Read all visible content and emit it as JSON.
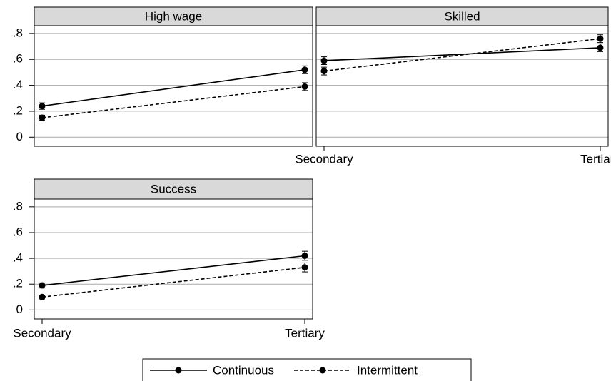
{
  "chart_data": [
    {
      "type": "line",
      "title": "High wage",
      "categories": [
        null,
        null
      ],
      "series": [
        {
          "name": "Continuous",
          "color": "#000000",
          "dashed": false,
          "values": [
            0.24,
            0.52
          ],
          "errors": [
            0.025,
            0.03
          ]
        },
        {
          "name": "Intermittent",
          "color": "#000000",
          "dashed": true,
          "values": [
            0.15,
            0.39
          ],
          "errors": [
            0.02,
            0.03
          ]
        }
      ],
      "ylim": [
        -0.07,
        0.86
      ],
      "yticks": [
        0,
        {
          "value": 0.2,
          "label": ".2"
        },
        {
          "value": 0.4,
          "label": ".4"
        },
        {
          "value": 0.6,
          "label": ".6"
        },
        {
          "value": 0.8,
          "label": ".8"
        }
      ],
      "grid": true
    },
    {
      "type": "line",
      "title": "Skilled",
      "categories": [
        "Secondary",
        "Tertiary"
      ],
      "series": [
        {
          "color": "#000000",
          "dashed": false,
          "values": [
            0.59,
            0.69
          ],
          "errors": [
            0.03,
            0.03
          ]
        },
        {
          "color": "#000000",
          "dashed": true,
          "values": [
            0.51,
            0.76
          ],
          "errors": [
            0.03,
            0.03
          ]
        }
      ],
      "ylim": [
        -0.07,
        0.86
      ],
      "yticks": [
        0,
        0.2,
        0.4,
        0.6,
        0.8
      ],
      "grid": true
    },
    {
      "type": "line",
      "title": "Success",
      "categories": [
        "Secondary",
        "Tertiary"
      ],
      "series": [
        {
          "color": "#000000",
          "dashed": false,
          "values": [
            0.19,
            0.42
          ],
          "errors": [
            0.02,
            0.035
          ]
        },
        {
          "color": "#000000",
          "dashed": true,
          "values": [
            0.1,
            0.33
          ],
          "errors": [
            0.015,
            0.035
          ]
        }
      ],
      "ylim": [
        -0.07,
        0.86
      ],
      "yticks": [
        0,
        {
          "value": 0.2,
          "label": ".2"
        },
        {
          "value": 0.4,
          "label": ".4"
        },
        {
          "value": 0.6,
          "label": ".6"
        },
        {
          "value": 0.8,
          "label": ".8"
        }
      ],
      "grid": true
    }
  ]
}
